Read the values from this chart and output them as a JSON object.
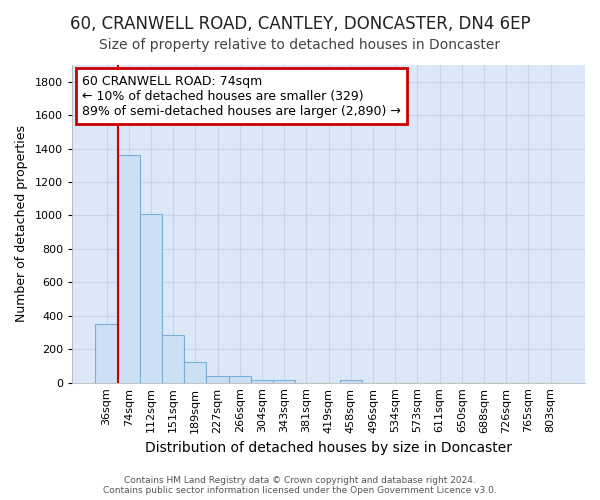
{
  "title": "60, CRANWELL ROAD, CANTLEY, DONCASTER, DN4 6EP",
  "subtitle": "Size of property relative to detached houses in Doncaster",
  "xlabel": "Distribution of detached houses by size in Doncaster",
  "ylabel": "Number of detached properties",
  "categories": [
    "36sqm",
    "74sqm",
    "112sqm",
    "151sqm",
    "189sqm",
    "227sqm",
    "266sqm",
    "304sqm",
    "343sqm",
    "381sqm",
    "419sqm",
    "458sqm",
    "496sqm",
    "534sqm",
    "573sqm",
    "611sqm",
    "650sqm",
    "688sqm",
    "726sqm",
    "765sqm",
    "803sqm"
  ],
  "values": [
    350,
    1360,
    1010,
    285,
    125,
    42,
    38,
    18,
    14,
    0,
    0,
    14,
    0,
    0,
    0,
    0,
    0,
    0,
    0,
    0,
    0
  ],
  "bar_color": "#ccdff5",
  "bar_edge_color": "#7aafd4",
  "annotation_box_text": "60 CRANWELL ROAD: 74sqm\n← 10% of detached houses are smaller (329)\n89% of semi-detached houses are larger (2,890) →",
  "annotation_box_color": "#ffffff",
  "annotation_box_edge_color": "#cc0000",
  "vline_color": "#cc0000",
  "vline_x_index": 1,
  "ylim": [
    0,
    1900
  ],
  "yticks": [
    0,
    200,
    400,
    600,
    800,
    1000,
    1200,
    1400,
    1600,
    1800
  ],
  "grid_color": "#c8d4e8",
  "plot_bg_color": "#dce8f8",
  "fig_bg_color": "#ffffff",
  "footer_text": "Contains HM Land Registry data © Crown copyright and database right 2024.\nContains public sector information licensed under the Open Government Licence v3.0.",
  "title_fontsize": 12,
  "subtitle_fontsize": 10,
  "xlabel_fontsize": 10,
  "ylabel_fontsize": 9,
  "tick_fontsize": 8,
  "ann_fontsize": 9
}
